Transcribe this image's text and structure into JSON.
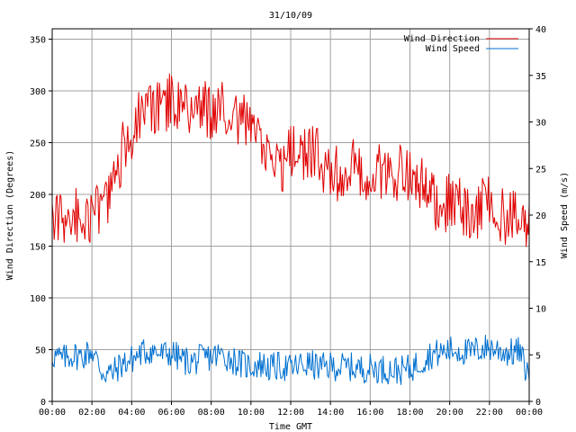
{
  "chart_data": {
    "type": "line",
    "title": "31/10/09",
    "xlabel": "Time GMT",
    "ylabel_left": "Wind Direction (Degrees)",
    "ylabel_right": "Wind Speed (m/s)",
    "x_tick_labels": [
      "00:00",
      "02:00",
      "04:00",
      "06:00",
      "08:00",
      "10:00",
      "12:00",
      "14:00",
      "16:00",
      "18:00",
      "20:00",
      "22:00",
      "00:00"
    ],
    "x_range_hours": [
      0,
      24
    ],
    "y_left_range": [
      0,
      360
    ],
    "y_left_ticks": [
      0,
      50,
      100,
      150,
      200,
      250,
      300,
      350
    ],
    "y_right_range": [
      0,
      40
    ],
    "y_right_ticks": [
      0,
      5,
      10,
      15,
      20,
      25,
      30,
      35,
      40
    ],
    "grid": true,
    "legend_position": "top-right",
    "series": [
      {
        "name": "Wind Direction",
        "axis": "left",
        "color": "#e00000",
        "x_hours": [
          0,
          0.5,
          1,
          1.5,
          2,
          2.5,
          3,
          3.5,
          4,
          4.5,
          5,
          5.5,
          6,
          6.5,
          7,
          7.5,
          8,
          8.5,
          9,
          9.5,
          10,
          10.5,
          11,
          11.5,
          12,
          12.5,
          13,
          13.5,
          14,
          14.5,
          15,
          15.5,
          16,
          16.5,
          17,
          17.5,
          18,
          18.5,
          19,
          19.5,
          20,
          20.5,
          21,
          21.5,
          22,
          22.5,
          23,
          23.5,
          24
        ],
        "values": [
          172,
          176,
          178,
          182,
          175,
          192,
          200,
          240,
          262,
          275,
          280,
          285,
          292,
          285,
          282,
          284,
          280,
          283,
          285,
          272,
          262,
          250,
          220,
          225,
          240,
          238,
          245,
          232,
          215,
          222,
          232,
          218,
          218,
          222,
          225,
          220,
          218,
          210,
          198,
          190,
          192,
          188,
          175,
          185,
          200,
          180,
          178,
          172,
          170
        ]
      },
      {
        "name": "Wind Speed",
        "axis": "right",
        "color": "#0070d0",
        "x_hours": [
          0,
          0.5,
          1,
          1.5,
          2,
          2.5,
          3,
          3.5,
          4,
          4.5,
          5,
          5.5,
          6,
          6.5,
          7,
          7.5,
          8,
          8.5,
          9,
          9.5,
          10,
          10.5,
          11,
          11.5,
          12,
          12.5,
          13,
          13.5,
          14,
          14.5,
          15,
          15.5,
          16,
          16.5,
          17,
          17.5,
          18,
          18.5,
          19,
          19.5,
          20,
          20.5,
          21,
          21.5,
          22,
          22.5,
          23,
          23.5,
          24
        ],
        "values": [
          5,
          4.5,
          5,
          4.8,
          5.5,
          3.2,
          3,
          4,
          4.5,
          5.2,
          5.5,
          5,
          5.2,
          4.5,
          4.2,
          4.6,
          4.8,
          5,
          4.6,
          4,
          3.8,
          4,
          3.6,
          3.8,
          3.5,
          3.9,
          4,
          3.6,
          3.8,
          3.7,
          3.7,
          3.5,
          3.6,
          3.5,
          3.4,
          3.3,
          3.5,
          4.2,
          5,
          5.2,
          5.5,
          5.5,
          5.2,
          5.6,
          5.8,
          5.5,
          5.2,
          5.4,
          2.5
        ]
      }
    ]
  }
}
